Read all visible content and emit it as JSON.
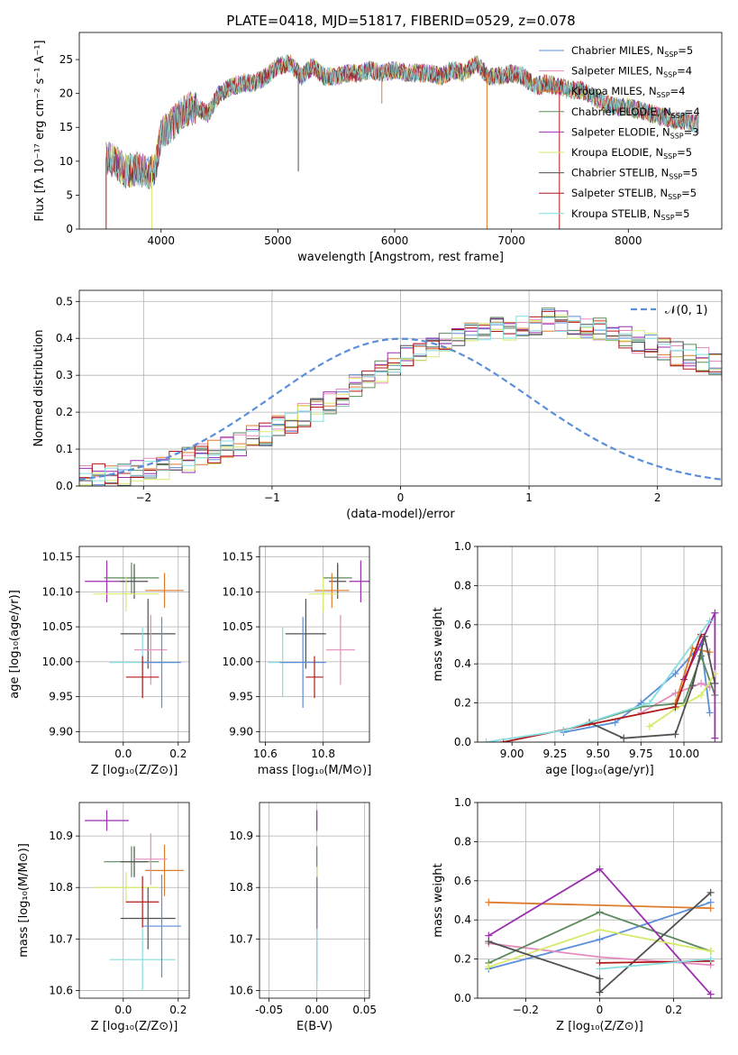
{
  "figure": {
    "title": "PLATE=0418, MJD=51817, FIBERID=0529, z=0.078"
  },
  "colors": {
    "chabrier_miles": "#5b8fd9",
    "salpeter_miles": "#e58cbe",
    "kroupa_miles": "#dd7c2d",
    "chabrier_elodie": "#5c8a5c",
    "salpeter_elodie": "#9b2fae",
    "kroupa_elodie": "#d6ea6a",
    "chabrier_stelib": "#505050",
    "salpeter_stelib": "#b01818",
    "kroupa_stelib": "#86dde0",
    "normal": "#5b8fd9",
    "grid": "#b0b0b0"
  },
  "chart_data": [
    {
      "id": "spectrum",
      "type": "line",
      "xlabel": "wavelength [Angstrom, rest frame]",
      "ylabel": "Flux [fλ 10⁻¹⁷ erg cm⁻² s⁻¹ A⁻¹]",
      "xlim": [
        3300,
        8800
      ],
      "ylim": [
        0,
        29
      ],
      "xticks": [
        4000,
        5000,
        6000,
        7000,
        8000
      ],
      "yticks": [
        0,
        5,
        10,
        15,
        20,
        25
      ],
      "grid": false,
      "legend_position": "top-right",
      "legend": [
        {
          "label": "Chabrier MILES, N",
          "sub": "SSP",
          "suffix": "=5",
          "color_key": "chabrier_miles"
        },
        {
          "label": "Salpeter MILES, N",
          "sub": "SSP",
          "suffix": "=4",
          "color_key": "salpeter_miles"
        },
        {
          "label": "Kroupa MILES, N",
          "sub": "SSP",
          "suffix": "=4",
          "color_key": "kroupa_miles"
        },
        {
          "label": "Chabrier ELODIE, N",
          "sub": "SSP",
          "suffix": "=4",
          "color_key": "chabrier_elodie"
        },
        {
          "label": "Salpeter ELODIE, N",
          "sub": "SSP",
          "suffix": "=3",
          "color_key": "salpeter_elodie"
        },
        {
          "label": "Kroupa ELODIE, N",
          "sub": "SSP",
          "suffix": "=5",
          "color_key": "kroupa_elodie"
        },
        {
          "label": "Chabrier STELIB, N",
          "sub": "SSP",
          "suffix": "=5",
          "color_key": "chabrier_stelib"
        },
        {
          "label": "Salpeter STELIB, N",
          "sub": "SSP",
          "suffix": "=5",
          "color_key": "salpeter_stelib"
        },
        {
          "label": "Kroupa STELIB, N",
          "sub": "SSP",
          "suffix": "=5",
          "color_key": "kroupa_stelib"
        }
      ],
      "envelope": {
        "x": [
          3530,
          3600,
          3700,
          3800,
          3900,
          3950,
          4000,
          4100,
          4200,
          4300,
          4400,
          4500,
          4600,
          4700,
          4800,
          4900,
          5000,
          5100,
          5200,
          5300,
          5400,
          5500,
          5600,
          5700,
          5800,
          5900,
          6000,
          6100,
          6200,
          6300,
          6400,
          6500,
          6600,
          6700,
          6800,
          6900,
          7000,
          7100,
          7200,
          7300,
          7400,
          7500,
          7600,
          7700,
          7800,
          7900,
          8000,
          8100,
          8200,
          8300,
          8400,
          8500,
          8600
        ],
        "y": [
          10.5,
          10,
          8.5,
          9,
          8,
          9,
          14,
          15.5,
          17.5,
          18,
          17,
          20,
          21,
          21.5,
          21.5,
          22.5,
          24,
          24.5,
          22.5,
          24,
          22.5,
          22.5,
          23,
          23,
          23.5,
          23,
          23.5,
          23,
          23,
          23,
          22.5,
          23.5,
          23,
          24.5,
          22.5,
          22.5,
          23,
          22.5,
          21,
          21.5,
          21,
          20.5,
          20.5,
          19.5,
          18.5,
          18,
          18,
          17.5,
          17,
          16.5,
          16,
          16,
          15.5
        ]
      },
      "dips": [
        {
          "x": 3530,
          "y": 0,
          "series": "salpeter_stelib"
        },
        {
          "x": 3920,
          "y": 0,
          "series": "kroupa_elodie"
        },
        {
          "x": 5175,
          "y": 8.5,
          "series": "chabrier_stelib"
        },
        {
          "x": 5890,
          "y": 18.5,
          "series": "kroupa_miles"
        },
        {
          "x": 6790,
          "y": 0,
          "series": "kroupa_miles"
        },
        {
          "x": 7410,
          "y": 0,
          "series": "salpeter_stelib"
        }
      ]
    },
    {
      "id": "residuals",
      "type": "step",
      "xlabel": "(data-model)/error",
      "ylabel": "Normed distribution",
      "xlim": [
        -2.5,
        2.5
      ],
      "ylim": [
        0,
        0.53
      ],
      "xticks": [
        -2,
        -1,
        0,
        1,
        2
      ],
      "yticks": [
        0.0,
        0.1,
        0.2,
        0.3,
        0.4,
        0.5
      ],
      "grid": true,
      "legend_position": "top-right",
      "normal_label": "𝒩(0, 1)",
      "bin_width": 0.1,
      "bin_start": -2.5,
      "base_hist": [
        0.02,
        0.025,
        0.03,
        0.035,
        0.04,
        0.045,
        0.05,
        0.06,
        0.07,
        0.08,
        0.09,
        0.1,
        0.11,
        0.13,
        0.14,
        0.16,
        0.17,
        0.19,
        0.21,
        0.23,
        0.25,
        0.27,
        0.29,
        0.31,
        0.33,
        0.35,
        0.37,
        0.38,
        0.39,
        0.4,
        0.41,
        0.42,
        0.43,
        0.43,
        0.44,
        0.44,
        0.45,
        0.44,
        0.43,
        0.42,
        0.42,
        0.41,
        0.4,
        0.39,
        0.38,
        0.37,
        0.36,
        0.35,
        0.34,
        0.33,
        0.31,
        0.29,
        0.27,
        0.25,
        0.23,
        0.21,
        0.19,
        0.17,
        0.15,
        0.13,
        0.12,
        0.1,
        0.09,
        0.08,
        0.07,
        0.06,
        0.05,
        0.045,
        0.04,
        0.035,
        0.03,
        0.025,
        0.02,
        0.02,
        0.02,
        0.015,
        0.015,
        0.015,
        0.01,
        0.01
      ]
    },
    {
      "id": "age_vs_z",
      "type": "errorbar",
      "xlabel": "Z [log₁₀(Z/Z⊙)]",
      "ylabel": "age  [log₁₀(age/yr)]",
      "xlim": [
        -0.16,
        0.24
      ],
      "ylim": [
        9.885,
        10.165
      ],
      "xticks": [
        0.0,
        0.2
      ],
      "yticks": [
        9.9,
        9.95,
        10.0,
        10.05,
        10.1,
        10.15
      ],
      "grid": true,
      "points": [
        {
          "x": -0.06,
          "xerr": 0.08,
          "y": 10.115,
          "yerr": 0.03,
          "color_key": "salpeter_elodie"
        },
        {
          "x": 0.03,
          "xerr": 0.1,
          "y": 10.12,
          "yerr": 0.022,
          "color_key": "chabrier_elodie"
        },
        {
          "x": 0.04,
          "xerr": 0.05,
          "y": 10.115,
          "yerr": 0.025,
          "color_key": "chabrier_stelib"
        },
        {
          "x": 0.15,
          "xerr": 0.07,
          "y": 10.102,
          "yerr": 0.025,
          "color_key": "kroupa_miles"
        },
        {
          "x": 0.01,
          "xerr": 0.12,
          "y": 10.097,
          "yerr": 0.025,
          "color_key": "kroupa_elodie"
        },
        {
          "x": 0.09,
          "xerr": 0.1,
          "y": 10.04,
          "yerr": 0.05,
          "color_key": "chabrier_stelib"
        },
        {
          "x": 0.1,
          "xerr": 0.06,
          "y": 10.017,
          "yerr": 0.05,
          "color_key": "salpeter_miles"
        },
        {
          "x": 0.07,
          "xerr": 0.12,
          "y": 9.999,
          "yerr": 0.05,
          "color_key": "kroupa_stelib"
        },
        {
          "x": 0.14,
          "xerr": 0.07,
          "y": 9.999,
          "yerr": 0.065,
          "color_key": "chabrier_miles"
        },
        {
          "x": 0.07,
          "xerr": 0.06,
          "y": 9.978,
          "yerr": 0.03,
          "color_key": "salpeter_stelib"
        }
      ]
    },
    {
      "id": "age_vs_mass",
      "type": "errorbar",
      "xlabel": "mass [log₁₀(M/M⊙)]",
      "ylabel": "",
      "xlim": [
        10.58,
        10.96
      ],
      "ylim": [
        9.885,
        10.165
      ],
      "xticks": [
        10.6,
        10.8
      ],
      "yticks": [
        9.9,
        9.95,
        10.0,
        10.05,
        10.1,
        10.15
      ],
      "grid": true,
      "points": [
        {
          "x": 10.93,
          "xerr": 0.04,
          "y": 10.115,
          "yerr": 0.03,
          "color_key": "salpeter_elodie"
        },
        {
          "x": 10.85,
          "xerr": 0.05,
          "y": 10.12,
          "yerr": 0.022,
          "color_key": "chabrier_elodie"
        },
        {
          "x": 10.85,
          "xerr": 0.03,
          "y": 10.115,
          "yerr": 0.025,
          "color_key": "chabrier_stelib"
        },
        {
          "x": 10.83,
          "xerr": 0.06,
          "y": 10.102,
          "yerr": 0.025,
          "color_key": "kroupa_miles"
        },
        {
          "x": 10.8,
          "xerr": 0.05,
          "y": 10.097,
          "yerr": 0.025,
          "color_key": "kroupa_elodie"
        },
        {
          "x": 10.74,
          "xerr": 0.07,
          "y": 10.04,
          "yerr": 0.05,
          "color_key": "chabrier_stelib"
        },
        {
          "x": 10.86,
          "xerr": 0.05,
          "y": 10.017,
          "yerr": 0.05,
          "color_key": "salpeter_miles"
        },
        {
          "x": 10.66,
          "xerr": 0.05,
          "y": 9.999,
          "yerr": 0.05,
          "color_key": "kroupa_stelib"
        },
        {
          "x": 10.73,
          "xerr": 0.08,
          "y": 9.999,
          "yerr": 0.065,
          "color_key": "chabrier_miles"
        },
        {
          "x": 10.77,
          "xerr": 0.03,
          "y": 9.978,
          "yerr": 0.03,
          "color_key": "salpeter_stelib"
        }
      ]
    },
    {
      "id": "massweight_vs_age",
      "type": "line",
      "xlabel": "age  [log₁₀(age/yr)]",
      "ylabel": "mass weight",
      "xlim": [
        8.8,
        10.22
      ],
      "ylim": [
        0,
        1.0
      ],
      "xticks": [
        9.0,
        9.25,
        9.5,
        9.75,
        10.0
      ],
      "yticks": [
        0.0,
        0.2,
        0.4,
        0.6,
        0.8,
        1.0
      ],
      "grid": true,
      "series": [
        {
          "color_key": "chabrier_miles",
          "x": [
            9.3,
            9.6,
            9.75,
            9.95,
            10.1,
            10.15
          ],
          "y": [
            0.05,
            0.1,
            0.2,
            0.35,
            0.5,
            0.15
          ]
        },
        {
          "color_key": "salpeter_miles",
          "x": [
            9.75,
            9.95,
            10.1,
            10.15
          ],
          "y": [
            0.15,
            0.25,
            0.3,
            0.28
          ]
        },
        {
          "color_key": "kroupa_miles",
          "x": [
            9.95,
            10.05,
            10.15
          ],
          "y": [
            0.2,
            0.48,
            0.46
          ]
        },
        {
          "color_key": "chabrier_elodie",
          "x": [
            9.3,
            9.75,
            10.0,
            10.1,
            10.18
          ],
          "y": [
            0.06,
            0.18,
            0.2,
            0.44,
            0.24
          ]
        },
        {
          "color_key": "salpeter_elodie",
          "x": [
            10.0,
            10.18,
            10.18
          ],
          "y": [
            0.32,
            0.66,
            0.02
          ]
        },
        {
          "color_key": "kroupa_elodie",
          "x": [
            9.8,
            9.95,
            10.1,
            10.18
          ],
          "y": [
            0.08,
            0.17,
            0.24,
            0.35
          ]
        },
        {
          "color_key": "chabrier_stelib",
          "x": [
            9.45,
            9.65,
            9.95,
            10.05,
            10.12,
            10.18
          ],
          "y": [
            0.1,
            0.02,
            0.04,
            0.29,
            0.54,
            0.3
          ]
        },
        {
          "color_key": "salpeter_stelib",
          "x": [
            8.95,
            9.95,
            10.1
          ],
          "y": [
            0.0,
            0.18,
            0.55
          ]
        },
        {
          "color_key": "kroupa_stelib",
          "x": [
            8.85,
            9.3,
            9.8,
            10.15
          ],
          "y": [
            0.0,
            0.06,
            0.2,
            0.62
          ]
        }
      ]
    },
    {
      "id": "mass_vs_z",
      "type": "errorbar",
      "xlabel": "Z [log₁₀(Z/Z⊙)]",
      "ylabel": "mass [log₁₀(M/M⊙)]",
      "xlim": [
        -0.16,
        0.24
      ],
      "ylim": [
        10.585,
        10.965
      ],
      "xticks": [
        0.0,
        0.2
      ],
      "yticks": [
        10.6,
        10.7,
        10.8,
        10.9
      ],
      "grid": true,
      "points": [
        {
          "x": -0.06,
          "xerr": 0.08,
          "y": 10.93,
          "yerr": 0.02,
          "color_key": "salpeter_elodie"
        },
        {
          "x": 0.03,
          "xerr": 0.1,
          "y": 10.85,
          "yerr": 0.03,
          "color_key": "chabrier_elodie"
        },
        {
          "x": 0.04,
          "xerr": 0.05,
          "y": 10.85,
          "yerr": 0.03,
          "color_key": "chabrier_stelib"
        },
        {
          "x": 0.15,
          "xerr": 0.07,
          "y": 10.833,
          "yerr": 0.05,
          "color_key": "kroupa_miles"
        },
        {
          "x": 0.01,
          "xerr": 0.12,
          "y": 10.8,
          "yerr": 0.03,
          "color_key": "kroupa_elodie"
        },
        {
          "x": 0.09,
          "xerr": 0.1,
          "y": 10.74,
          "yerr": 0.06,
          "color_key": "chabrier_stelib"
        },
        {
          "x": 0.1,
          "xerr": 0.06,
          "y": 10.855,
          "yerr": 0.05,
          "color_key": "salpeter_miles"
        },
        {
          "x": 0.07,
          "xerr": 0.12,
          "y": 10.66,
          "yerr": 0.06,
          "color_key": "kroupa_stelib"
        },
        {
          "x": 0.14,
          "xerr": 0.07,
          "y": 10.725,
          "yerr": 0.1,
          "color_key": "chabrier_miles"
        },
        {
          "x": 0.07,
          "xerr": 0.06,
          "y": 10.772,
          "yerr": 0.05,
          "color_key": "salpeter_stelib"
        }
      ]
    },
    {
      "id": "mass_vs_ebv",
      "type": "errorbar",
      "xlabel": "E(B-V)",
      "ylabel": "",
      "xlim": [
        -0.06,
        0.055
      ],
      "ylim": [
        10.585,
        10.965
      ],
      "xticks": [
        -0.05,
        0.0,
        0.05
      ],
      "yticks": [
        10.6,
        10.7,
        10.8,
        10.9
      ],
      "grid": true,
      "points": [
        {
          "x": 0.0,
          "xerr": 0.0,
          "y": 10.93,
          "yerr": 0.02,
          "color_key": "salpeter_elodie"
        },
        {
          "x": 0.0,
          "xerr": 0.0,
          "y": 10.84,
          "yerr": 0.04,
          "color_key": "chabrier_elodie"
        },
        {
          "x": 0.0,
          "xerr": 0.0,
          "y": 10.8,
          "yerr": 0.04,
          "color_key": "kroupa_elodie"
        },
        {
          "x": 0.0,
          "xerr": 0.0,
          "y": 10.77,
          "yerr": 0.05,
          "color_key": "salpeter_stelib"
        },
        {
          "x": 0.0,
          "xerr": 0.0,
          "y": 10.72,
          "yerr": 0.1,
          "color_key": "chabrier_miles"
        },
        {
          "x": 0.0,
          "xerr": 0.0,
          "y": 10.66,
          "yerr": 0.06,
          "color_key": "kroupa_stelib"
        }
      ]
    },
    {
      "id": "massweight_vs_z",
      "type": "line",
      "xlabel": "Z [log₁₀(Z/Z⊙)]",
      "ylabel": "mass weight",
      "xlim": [
        -0.33,
        0.33
      ],
      "ylim": [
        0,
        1.0
      ],
      "xticks": [
        -0.2,
        0.0,
        0.2
      ],
      "yticks": [
        0.0,
        0.2,
        0.4,
        0.6,
        0.8,
        1.0
      ],
      "grid": true,
      "series": [
        {
          "color_key": "chabrier_miles",
          "x": [
            -0.3,
            0.0,
            0.3
          ],
          "y": [
            0.15,
            0.3,
            0.49
          ]
        },
        {
          "color_key": "salpeter_miles",
          "x": [
            -0.3,
            0.0,
            0.3
          ],
          "y": [
            0.28,
            0.21,
            0.17
          ]
        },
        {
          "color_key": "kroupa_miles",
          "x": [
            -0.3,
            0.3
          ],
          "y": [
            0.49,
            0.46
          ]
        },
        {
          "color_key": "chabrier_elodie",
          "x": [
            -0.3,
            0.0,
            0.3
          ],
          "y": [
            0.18,
            0.44,
            0.24
          ]
        },
        {
          "color_key": "salpeter_elodie",
          "x": [
            -0.3,
            0.0,
            0.3
          ],
          "y": [
            0.32,
            0.66,
            0.02
          ]
        },
        {
          "color_key": "kroupa_elodie",
          "x": [
            -0.3,
            0.0,
            0.3
          ],
          "y": [
            0.16,
            0.35,
            0.24
          ]
        },
        {
          "color_key": "chabrier_stelib",
          "x": [
            -0.3,
            0.0,
            0.0,
            0.3
          ],
          "y": [
            0.29,
            0.1,
            0.03,
            0.54
          ]
        },
        {
          "color_key": "salpeter_stelib",
          "x": [
            0.0,
            0.3
          ],
          "y": [
            0.18,
            0.19
          ]
        },
        {
          "color_key": "kroupa_stelib",
          "x": [
            0.0,
            0.3
          ],
          "y": [
            0.15,
            0.2
          ]
        }
      ]
    }
  ]
}
